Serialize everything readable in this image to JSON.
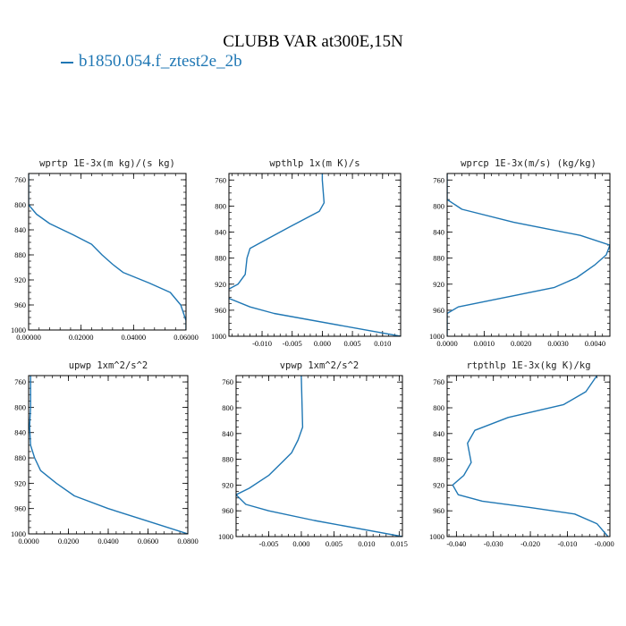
{
  "title": "CLUBB VAR at300E,15N",
  "legend": {
    "label": "b1850.054.f_ztest2e_2b",
    "color": "#1f77b4"
  },
  "chart_data": [
    {
      "type": "line",
      "title": "wprtp  1E-3x(m kg)/(s kg)",
      "xlim": [
        0.0,
        0.06
      ],
      "ylim": [
        1000,
        750
      ],
      "xticks": [
        0.0,
        0.02,
        0.04,
        0.06
      ],
      "xtick_labels": [
        "0.00000",
        "0.02000",
        "0.04000",
        "0.06000"
      ],
      "yticks": [
        760,
        800,
        840,
        880,
        920,
        960,
        1000
      ],
      "series": [
        {
          "values": [
            [
              0.0,
              750
            ],
            [
              0.0,
              800
            ],
            [
              0.003,
              815
            ],
            [
              0.008,
              830
            ],
            [
              0.017,
              848
            ],
            [
              0.024,
              863
            ],
            [
              0.028,
              880
            ],
            [
              0.032,
              895
            ],
            [
              0.036,
              908
            ],
            [
              0.046,
              925
            ],
            [
              0.054,
              940
            ],
            [
              0.058,
              960
            ],
            [
              0.06,
              985
            ],
            [
              0.06,
              1000
            ]
          ]
        }
      ]
    },
    {
      "type": "line",
      "title": "wpthlp  1x(m K)/s",
      "xlim": [
        -0.0155,
        0.013
      ],
      "ylim": [
        1000,
        750
      ],
      "xticks": [
        -0.01,
        -0.005,
        0.0,
        0.005,
        0.01
      ],
      "xtick_labels": [
        "-0.010",
        "-0.005",
        "0.000",
        "0.005",
        "0.010"
      ],
      "yticks": [
        760,
        800,
        840,
        880,
        920,
        960,
        1000
      ],
      "series": [
        {
          "values": [
            [
              0.0,
              750
            ],
            [
              0.0,
              760
            ],
            [
              0.0003,
              795
            ],
            [
              -0.0005,
              808
            ],
            [
              -0.005,
              830
            ],
            [
              -0.009,
              850
            ],
            [
              -0.012,
              865
            ],
            [
              -0.0125,
              880
            ],
            [
              -0.0128,
              905
            ],
            [
              -0.014,
              920
            ],
            [
              -0.016,
              930
            ],
            [
              -0.016,
              940
            ],
            [
              -0.012,
              955
            ],
            [
              -0.008,
              965
            ],
            [
              0.013,
              1000
            ]
          ]
        }
      ]
    },
    {
      "type": "line",
      "title": "wprcp  1E-3x(m/s) (kg/kg)",
      "xlim": [
        0.0,
        0.0044
      ],
      "ylim": [
        1000,
        750
      ],
      "xticks": [
        0.0,
        0.001,
        0.002,
        0.003,
        0.004
      ],
      "xtick_labels": [
        "0.0000",
        "0.0010",
        "0.0020",
        "0.0030",
        "0.0040"
      ],
      "yticks": [
        760,
        800,
        840,
        880,
        920,
        960,
        1000
      ],
      "series": [
        {
          "values": [
            [
              0.0,
              750
            ],
            [
              0.0,
              790
            ],
            [
              0.0004,
              805
            ],
            [
              0.0018,
              825
            ],
            [
              0.0036,
              845
            ],
            [
              0.0044,
              860
            ],
            [
              0.0043,
              875
            ],
            [
              0.004,
              890
            ],
            [
              0.0035,
              910
            ],
            [
              0.0029,
              925
            ],
            [
              0.0016,
              940
            ],
            [
              0.0003,
              955
            ],
            [
              0.0,
              965
            ],
            [
              0.0,
              1000
            ]
          ]
        }
      ]
    },
    {
      "type": "line",
      "title": "upwp  1xm^2/s^2",
      "xlim": [
        0.0,
        0.08
      ],
      "ylim": [
        1000,
        750
      ],
      "xticks": [
        0.0,
        0.02,
        0.04,
        0.06,
        0.08
      ],
      "xtick_labels": [
        "0.0000",
        "0.0200",
        "0.0400",
        "0.0600",
        "0.0800"
      ],
      "yticks": [
        760,
        800,
        840,
        880,
        920,
        960,
        1000
      ],
      "series": [
        {
          "values": [
            [
              0.001,
              750
            ],
            [
              0.001,
              800
            ],
            [
              0.0005,
              830
            ],
            [
              0.001,
              860
            ],
            [
              0.003,
              880
            ],
            [
              0.006,
              900
            ],
            [
              0.014,
              920
            ],
            [
              0.023,
              940
            ],
            [
              0.04,
              960
            ],
            [
              0.06,
              980
            ],
            [
              0.08,
              1000
            ]
          ]
        }
      ]
    },
    {
      "type": "line",
      "title": "vpwp  1xm^2/s^2",
      "xlim": [
        -0.01,
        0.0155
      ],
      "ylim": [
        1000,
        750
      ],
      "xticks": [
        -0.005,
        0.0,
        0.005,
        0.01,
        0.015
      ],
      "xtick_labels": [
        "-0.005",
        "0.000",
        "0.005",
        "0.010",
        "0.015"
      ],
      "yticks": [
        760,
        800,
        840,
        880,
        920,
        960,
        1000
      ],
      "series": [
        {
          "values": [
            [
              0.0,
              750
            ],
            [
              0.0002,
              830
            ],
            [
              -0.0005,
              850
            ],
            [
              -0.0015,
              870
            ],
            [
              -0.003,
              885
            ],
            [
              -0.005,
              905
            ],
            [
              -0.008,
              925
            ],
            [
              -0.01,
              935
            ],
            [
              -0.0085,
              950
            ],
            [
              -0.005,
              960
            ],
            [
              0.002,
              975
            ],
            [
              0.0155,
              1000
            ]
          ]
        }
      ]
    },
    {
      "type": "line",
      "title": "rtpthlp  1E-3x(kg K)/kg",
      "xlim": [
        -0.0425,
        0.0015
      ],
      "ylim": [
        1000,
        750
      ],
      "xticks": [
        -0.04,
        -0.03,
        -0.02,
        -0.01,
        0.0
      ],
      "xtick_labels": [
        "-0.040",
        "-0.030",
        "-0.020",
        "-0.010",
        "-0.000"
      ],
      "yticks": [
        760,
        800,
        840,
        880,
        920,
        960,
        1000
      ],
      "series": [
        {
          "values": [
            [
              -0.002,
              750
            ],
            [
              -0.005,
              775
            ],
            [
              -0.011,
              795
            ],
            [
              -0.026,
              815
            ],
            [
              -0.035,
              835
            ],
            [
              -0.037,
              855
            ],
            [
              -0.036,
              885
            ],
            [
              -0.038,
              905
            ],
            [
              -0.041,
              920
            ],
            [
              -0.0395,
              935
            ],
            [
              -0.033,
              945
            ],
            [
              -0.02,
              955
            ],
            [
              -0.008,
              965
            ],
            [
              -0.002,
              980
            ],
            [
              0.001,
              1000
            ]
          ]
        }
      ]
    }
  ]
}
